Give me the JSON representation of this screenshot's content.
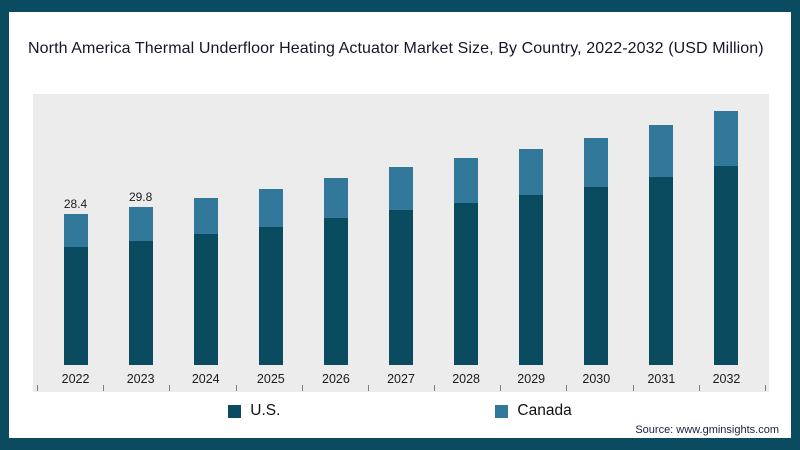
{
  "title": "North America Thermal Underfloor Heating Actuator Market Size, By Country, 2022-2032 (USD Million)",
  "source": "Source: www.gminsights.com",
  "frame_color": "#0b4b60",
  "plot_bg": "#ececec",
  "chart_data": {
    "type": "bar",
    "stacked": true,
    "title": "North America Thermal Underfloor Heating Actuator Market Size, By Country, 2022-2032 (USD Million)",
    "xlabel": "",
    "ylabel": "USD Million",
    "ylim": [
      0,
      50
    ],
    "grid": false,
    "legend_position": "bottom",
    "categories": [
      "2022",
      "2023",
      "2024",
      "2025",
      "2026",
      "2027",
      "2028",
      "2029",
      "2030",
      "2031",
      "2032"
    ],
    "series": [
      {
        "name": "U.S.",
        "color": "#0b4b60",
        "values": [
          22.3,
          23.4,
          24.8,
          26.1,
          27.7,
          29.3,
          30.6,
          32.0,
          33.6,
          35.5,
          37.6
        ]
      },
      {
        "name": "Canada",
        "color": "#32789b",
        "values": [
          6.1,
          6.4,
          6.7,
          7.1,
          7.5,
          8.0,
          8.4,
          8.8,
          9.2,
          9.8,
          10.4
        ]
      }
    ],
    "totals": [
      28.4,
      29.8,
      31.5,
      33.2,
      35.2,
      37.3,
      39.0,
      40.8,
      42.8,
      45.3,
      48.0
    ],
    "bar_labels": [
      "28.4",
      "29.8",
      "",
      "",
      "",
      "",
      "",
      "",
      "",
      "",
      ""
    ]
  }
}
